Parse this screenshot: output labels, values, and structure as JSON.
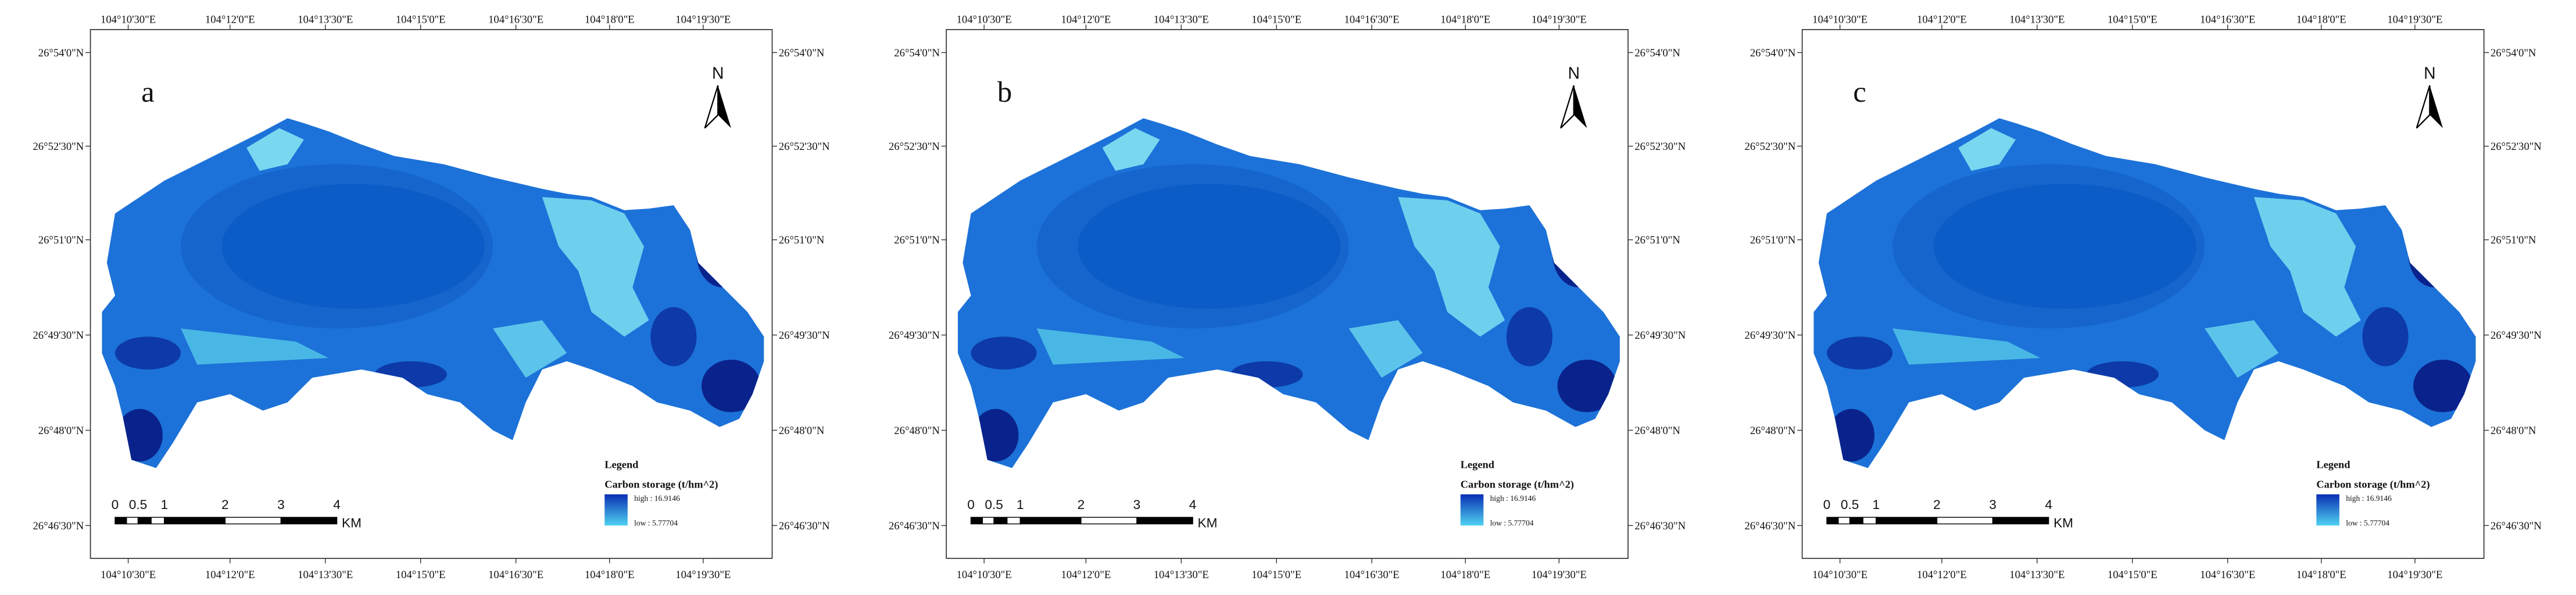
{
  "maps": [
    {
      "label": "a"
    },
    {
      "label": "b"
    },
    {
      "label": "c"
    }
  ],
  "longitude_ticks": [
    "104°10'30\"E",
    "104°12'0\"E",
    "104°13'30\"E",
    "104°15'0\"E",
    "104°16'30\"E",
    "104°18'0\"E",
    "104°19'30\"E"
  ],
  "latitude_ticks": [
    "26°54'0\"N",
    "26°52'30\"N",
    "26°51'0\"N",
    "26°49'30\"N",
    "26°48'0\"N",
    "26°46'30\"N"
  ],
  "north_label": "N",
  "legend": {
    "title": "Legend",
    "subtitle": "Carbon storage (t/hm^2)",
    "high": "high : 16.9146",
    "low": "low : 5.77704"
  },
  "scale_bar": {
    "labels": [
      "0",
      "0.5",
      "1",
      "2",
      "3",
      "4"
    ],
    "unit": "KM"
  }
}
